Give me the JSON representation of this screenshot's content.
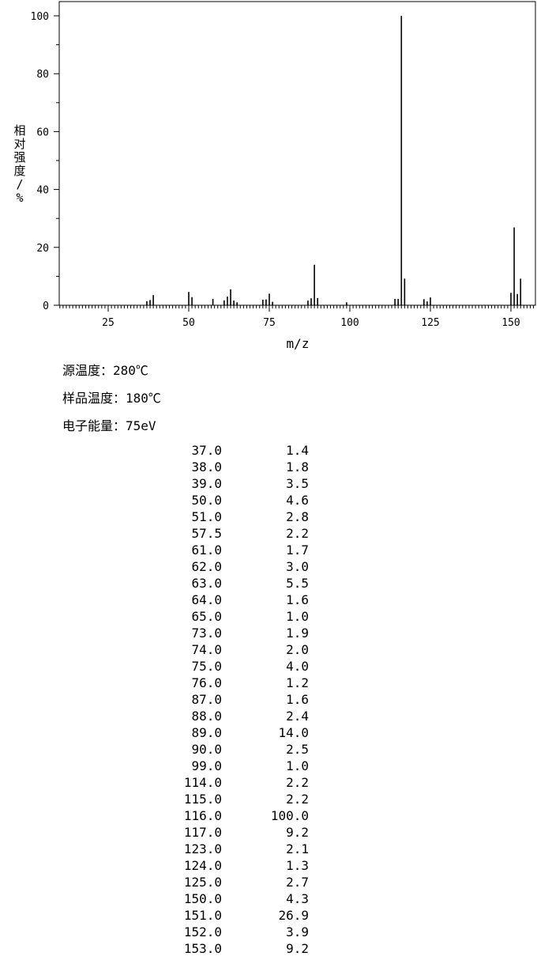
{
  "chart_data": {
    "type": "bar",
    "xlabel": "m/z",
    "ylabel": "相对强度/%",
    "xlim": [
      9,
      157
    ],
    "ylim": [
      0,
      100
    ],
    "x_ticks": [
      "25",
      "50",
      "75",
      "100",
      "125",
      "150"
    ],
    "y_ticks": [
      "0",
      "20",
      "40",
      "60",
      "80",
      "100"
    ],
    "grid": false,
    "peaks": [
      {
        "mz": 37.0,
        "intensity": 1.4
      },
      {
        "mz": 38.0,
        "intensity": 1.8
      },
      {
        "mz": 39.0,
        "intensity": 3.5
      },
      {
        "mz": 50.0,
        "intensity": 4.6
      },
      {
        "mz": 51.0,
        "intensity": 2.8
      },
      {
        "mz": 57.5,
        "intensity": 2.2
      },
      {
        "mz": 61.0,
        "intensity": 1.7
      },
      {
        "mz": 62.0,
        "intensity": 3.0
      },
      {
        "mz": 63.0,
        "intensity": 5.5
      },
      {
        "mz": 64.0,
        "intensity": 1.6
      },
      {
        "mz": 65.0,
        "intensity": 1.0
      },
      {
        "mz": 73.0,
        "intensity": 1.9
      },
      {
        "mz": 74.0,
        "intensity": 2.0
      },
      {
        "mz": 75.0,
        "intensity": 4.0
      },
      {
        "mz": 76.0,
        "intensity": 1.2
      },
      {
        "mz": 87.0,
        "intensity": 1.6
      },
      {
        "mz": 88.0,
        "intensity": 2.4
      },
      {
        "mz": 89.0,
        "intensity": 14.0
      },
      {
        "mz": 90.0,
        "intensity": 2.5
      },
      {
        "mz": 99.0,
        "intensity": 1.0
      },
      {
        "mz": 114.0,
        "intensity": 2.2
      },
      {
        "mz": 115.0,
        "intensity": 2.2
      },
      {
        "mz": 116.0,
        "intensity": 100.0
      },
      {
        "mz": 117.0,
        "intensity": 9.2
      },
      {
        "mz": 123.0,
        "intensity": 2.1
      },
      {
        "mz": 124.0,
        "intensity": 1.3
      },
      {
        "mz": 125.0,
        "intensity": 2.7
      },
      {
        "mz": 150.0,
        "intensity": 4.3
      },
      {
        "mz": 151.0,
        "intensity": 26.9
      },
      {
        "mz": 152.0,
        "intensity": 3.9
      },
      {
        "mz": 153.0,
        "intensity": 9.2
      }
    ]
  },
  "conditions": {
    "source_temp": "源温度：280℃",
    "sample_temp": "样品温度：180℃",
    "electron_energy": "电子能量：75eV"
  },
  "peak_table": [
    {
      "mz": "37.0",
      "intensity": "1.4"
    },
    {
      "mz": "38.0",
      "intensity": "1.8"
    },
    {
      "mz": "39.0",
      "intensity": "3.5"
    },
    {
      "mz": "50.0",
      "intensity": "4.6"
    },
    {
      "mz": "51.0",
      "intensity": "2.8"
    },
    {
      "mz": "57.5",
      "intensity": "2.2"
    },
    {
      "mz": "61.0",
      "intensity": "1.7"
    },
    {
      "mz": "62.0",
      "intensity": "3.0"
    },
    {
      "mz": "63.0",
      "intensity": "5.5"
    },
    {
      "mz": "64.0",
      "intensity": "1.6"
    },
    {
      "mz": "65.0",
      "intensity": "1.0"
    },
    {
      "mz": "73.0",
      "intensity": "1.9"
    },
    {
      "mz": "74.0",
      "intensity": "2.0"
    },
    {
      "mz": "75.0",
      "intensity": "4.0"
    },
    {
      "mz": "76.0",
      "intensity": "1.2"
    },
    {
      "mz": "87.0",
      "intensity": "1.6"
    },
    {
      "mz": "88.0",
      "intensity": "2.4"
    },
    {
      "mz": "89.0",
      "intensity": "14.0"
    },
    {
      "mz": "90.0",
      "intensity": "2.5"
    },
    {
      "mz": "99.0",
      "intensity": "1.0"
    },
    {
      "mz": "114.0",
      "intensity": "2.2"
    },
    {
      "mz": "115.0",
      "intensity": "2.2"
    },
    {
      "mz": "116.0",
      "intensity": "100.0"
    },
    {
      "mz": "117.0",
      "intensity": "9.2"
    },
    {
      "mz": "123.0",
      "intensity": "2.1"
    },
    {
      "mz": "124.0",
      "intensity": "1.3"
    },
    {
      "mz": "125.0",
      "intensity": "2.7"
    },
    {
      "mz": "150.0",
      "intensity": "4.3"
    },
    {
      "mz": "151.0",
      "intensity": "26.9"
    },
    {
      "mz": "152.0",
      "intensity": "3.9"
    },
    {
      "mz": "153.0",
      "intensity": "9.2"
    }
  ]
}
